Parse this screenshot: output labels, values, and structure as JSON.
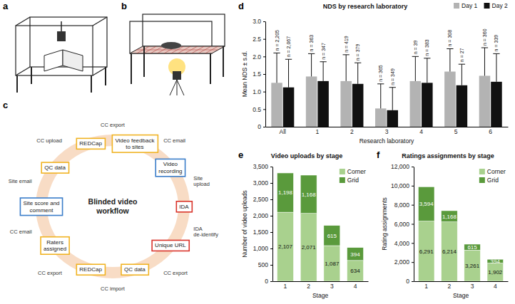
{
  "panel_labels": [
    "a",
    "b",
    "c",
    "d",
    "e",
    "f"
  ],
  "diagram": {
    "center": "Blinded video workflow",
    "nodes": [
      {
        "label": "Video feedback to sites",
        "color": "#f0b323"
      },
      {
        "label": "Video recording",
        "color": "#3a7dc9"
      },
      {
        "label": "IDA",
        "color": "#d9342b"
      },
      {
        "label": "Unique URL",
        "color": "#d9342b"
      },
      {
        "label": "QC data",
        "color": "#f0b323"
      },
      {
        "label": "REDCap",
        "color": "#f0b323"
      },
      {
        "label": "Raters assigned",
        "color": "#f0b323"
      },
      {
        "label": "Site score and comment",
        "color": "#3a7dc9"
      },
      {
        "label": "QC data",
        "color": "#f0b323"
      },
      {
        "label": "REDCap",
        "color": "#f0b323"
      }
    ],
    "edges": [
      "CC email",
      "Site upload",
      "IDA de-identify",
      "CC export",
      "CC import",
      "CC export",
      "CC email",
      "Site email",
      "CC upload",
      "CC export"
    ]
  },
  "chart_data": [
    {
      "type": "bar",
      "title": "NDS by research laboratory",
      "x_label": "Research laboratory",
      "y_label": "Mean NDS ± s.d.",
      "categories": [
        "All",
        "1",
        "2",
        "3",
        "4",
        "5",
        "6"
      ],
      "ylim": [
        0,
        3
      ],
      "yticks": [
        0,
        0.5,
        {
          "value": 1,
          "label": "1.0"
        },
        1.5,
        {
          "value": 2,
          "label": "2.0"
        },
        2.5,
        {
          "value": 3,
          "label": "3.0"
        }
      ],
      "legend": "top-right",
      "series": [
        {
          "name": "Day 1",
          "color": "#b3b3b3",
          "values": [
            1.25,
            1.43,
            1.3,
            0.52,
            1.3,
            1.57,
            1.45
          ],
          "error": [
            0.85,
            0.65,
            0.75,
            0.7,
            0.7,
            0.65,
            0.8
          ],
          "n_labels": [
            "n = 2,205",
            "n = 363",
            "n = 419",
            "n = 365",
            "n = 39",
            "n = 308",
            "n = 360"
          ]
        },
        {
          "name": "Day 2",
          "color": "#111111",
          "values": [
            1.12,
            1.3,
            1.22,
            0.47,
            1.25,
            1.18,
            1.28
          ],
          "error": [
            0.8,
            0.55,
            0.6,
            0.65,
            0.7,
            0.6,
            0.8
          ],
          "n_labels": [
            "n = 2,067",
            "n = 347",
            "n = 379",
            "n = 349",
            "n = 383",
            "n = 27",
            "n = 339"
          ]
        }
      ]
    },
    {
      "type": "bar",
      "title": "Video uploads by stage",
      "x_label": "Stage",
      "y_label": "Number of video uploads",
      "categories": [
        "1",
        "2",
        "3",
        "4"
      ],
      "ylim": [
        0,
        3500
      ],
      "yticks": [
        0,
        500,
        {
          "value": 1000,
          "label": "1,000"
        },
        {
          "value": 1500,
          "label": "1,500"
        },
        {
          "value": 2000,
          "label": "2,000"
        },
        {
          "value": 2500,
          "label": "2,500"
        },
        {
          "value": 3000,
          "label": "3,000"
        },
        {
          "value": 3500,
          "label": "3,500"
        }
      ],
      "stacked": true,
      "data_labels": true,
      "legend": "upper right",
      "series": [
        {
          "name": "Corner",
          "color": "#a9d18e",
          "values": [
            2107,
            2071,
            1087,
            634
          ],
          "value_labels": [
            "2,107",
            "2,071",
            "1,087",
            "634"
          ]
        },
        {
          "name": "Grid",
          "color": "#5a9a3c",
          "values": [
            1198,
            1168,
            615,
            394
          ],
          "value_labels": [
            "1,198",
            "1,168",
            "615",
            "394"
          ]
        }
      ]
    },
    {
      "type": "bar",
      "title": "Ratings assignments by stage",
      "x_label": "Stage",
      "y_label": "Rating assignments",
      "categories": [
        "1",
        "2",
        "3",
        "4"
      ],
      "ylim": [
        0,
        12000
      ],
      "yticks": [
        0,
        {
          "value": 2000,
          "label": "2,000"
        },
        {
          "value": 4000,
          "label": "4,000"
        },
        {
          "value": 6000,
          "label": "6,000"
        },
        {
          "value": 8000,
          "label": "8,000"
        },
        {
          "value": 10000,
          "label": "10,000"
        },
        {
          "value": 12000,
          "label": "12,000"
        }
      ],
      "stacked": true,
      "data_labels": true,
      "legend": "upper right",
      "series": [
        {
          "name": "Corner",
          "color": "#a9d18e",
          "values": [
            6291,
            6214,
            3261,
            1902
          ],
          "value_labels": [
            "6,291",
            "6,214",
            "3,261",
            "1,902"
          ]
        },
        {
          "name": "Grid",
          "color": "#5a9a3c",
          "values": [
            3594,
            1168,
            615,
            394
          ],
          "value_labels": [
            "3,594",
            "1,168",
            "615",
            "394"
          ]
        }
      ]
    }
  ]
}
